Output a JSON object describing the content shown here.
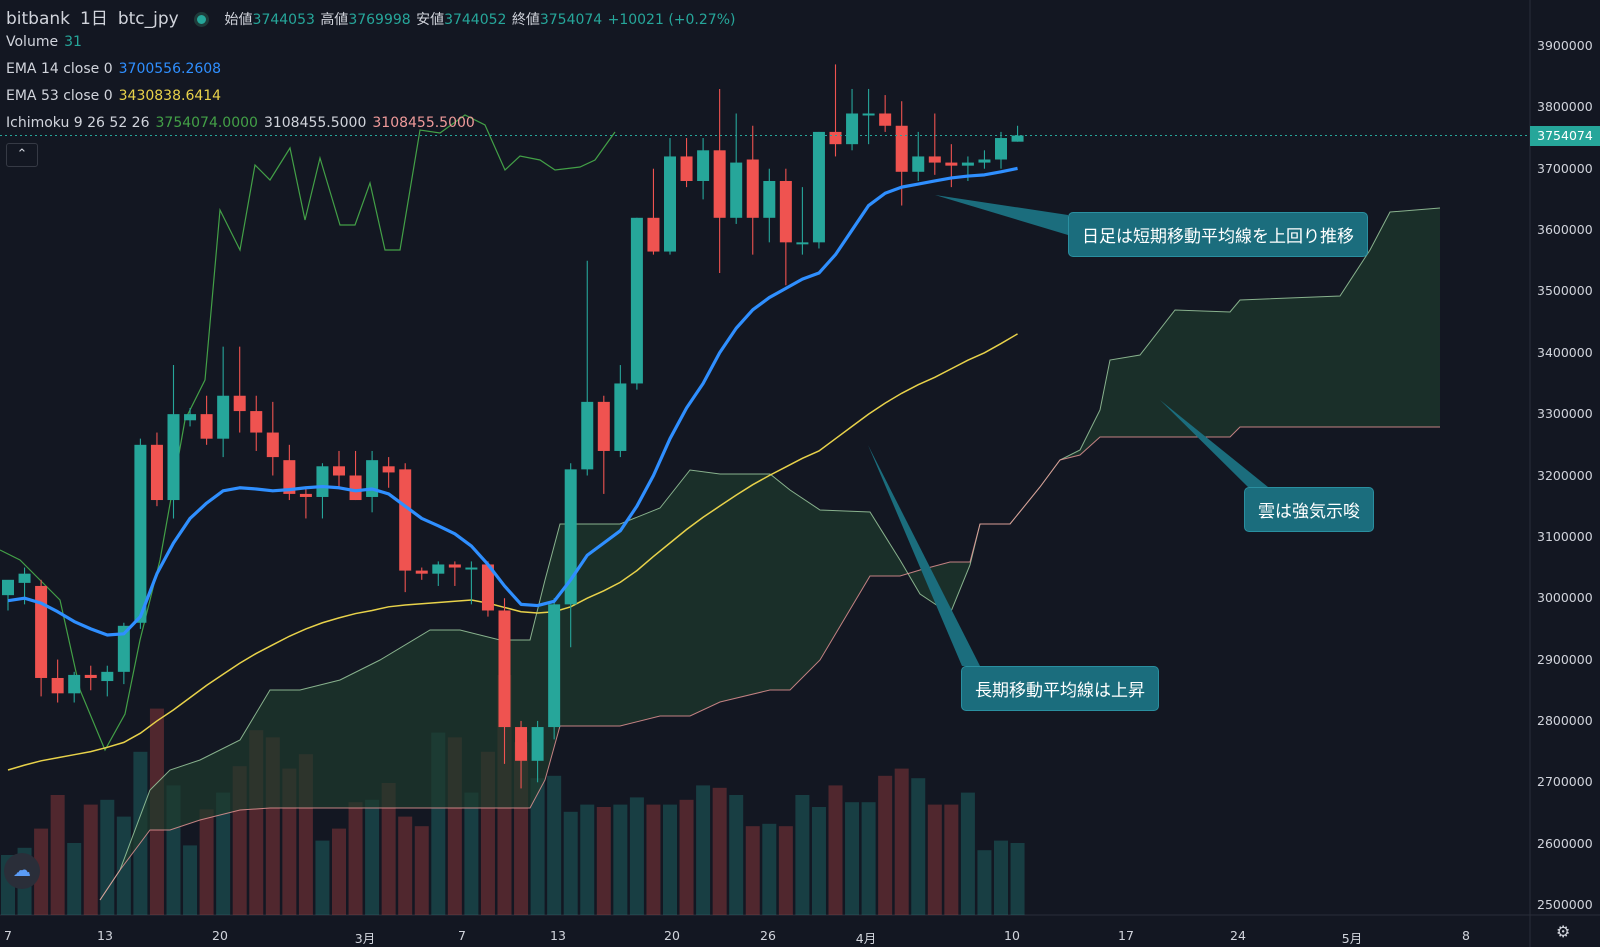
{
  "header": {
    "exchange": "bitbank",
    "interval": "1日",
    "symbol": "btc_jpy",
    "open_label": "始値",
    "open": "3744053",
    "high_label": "高値",
    "high": "3769998",
    "low_label": "安値",
    "low": "3744052",
    "close_label": "終値",
    "close": "3754074",
    "change": "+10021 (+0.27%)"
  },
  "indicators": {
    "volume_label": "Volume",
    "volume_value": "31",
    "ema14_label": "EMA 14 close 0",
    "ema14_value": "3700556.2608",
    "ema53_label": "EMA 53 close 0",
    "ema53_value": "3430838.6414",
    "ichimoku_label": "Ichimoku 9 26 52 26",
    "ichimoku_v1": "3754074.0000",
    "ichimoku_v2": "3108455.5000",
    "ichimoku_v3": "3108455.5000"
  },
  "collapse_icon": "chevron-up-icon",
  "annotations": {
    "short_ma": "日足は短期移動平均線を上回り推移",
    "cloud": "雲は強気示唆",
    "long_ma": "長期移動平均線は上昇"
  },
  "current_price_label": "3754074",
  "colors": {
    "up": "#26a69a",
    "down": "#ef5350",
    "ema14": "#2f8fff",
    "ema53": "#e8d24a",
    "lagging": "#43a047",
    "span_a": "#a5d6a7",
    "span_b": "#ef9a9a",
    "tag": "#1b6d7d",
    "background": "#131722"
  },
  "chart_data": {
    "type": "candlestick",
    "y_axis": {
      "range": [
        2500000,
        3900000
      ],
      "ticks": [
        "3900000",
        "3800000",
        "3700000",
        "3600000",
        "3500000",
        "3400000",
        "3300000",
        "3200000",
        "3100000",
        "3000000",
        "2900000",
        "2800000",
        "2700000",
        "2600000",
        "2500000"
      ]
    },
    "x_axis_labels": [
      "7",
      "13",
      "20",
      "3月",
      "7",
      "13",
      "20",
      "26",
      "4月",
      "10",
      "17",
      "24",
      "5月",
      "8"
    ],
    "candles": [
      {
        "o": 3005000,
        "h": 3020000,
        "l": 2980000,
        "c": 3030000
      },
      {
        "o": 3025000,
        "h": 3050000,
        "l": 2990000,
        "c": 3040000
      },
      {
        "o": 3020000,
        "h": 3030000,
        "l": 2840000,
        "c": 2870000
      },
      {
        "o": 2870000,
        "h": 2900000,
        "l": 2830000,
        "c": 2845000
      },
      {
        "o": 2845000,
        "h": 2880000,
        "l": 2830000,
        "c": 2875000
      },
      {
        "o": 2875000,
        "h": 2890000,
        "l": 2850000,
        "c": 2870000
      },
      {
        "o": 2865000,
        "h": 2890000,
        "l": 2840000,
        "c": 2880000
      },
      {
        "o": 2880000,
        "h": 2960000,
        "l": 2860000,
        "c": 2955000
      },
      {
        "o": 2960000,
        "h": 3260000,
        "l": 2950000,
        "c": 3250000
      },
      {
        "o": 3250000,
        "h": 3270000,
        "l": 3150000,
        "c": 3160000
      },
      {
        "o": 3160000,
        "h": 3380000,
        "l": 3130000,
        "c": 3300000
      },
      {
        "o": 3290000,
        "h": 3310000,
        "l": 3280000,
        "c": 3300000
      },
      {
        "o": 3300000,
        "h": 3330000,
        "l": 3250000,
        "c": 3260000
      },
      {
        "o": 3260000,
        "h": 3410000,
        "l": 3230000,
        "c": 3330000
      },
      {
        "o": 3330000,
        "h": 3410000,
        "l": 3270000,
        "c": 3305000
      },
      {
        "o": 3305000,
        "h": 3330000,
        "l": 3240000,
        "c": 3270000
      },
      {
        "o": 3270000,
        "h": 3320000,
        "l": 3200000,
        "c": 3230000
      },
      {
        "o": 3225000,
        "h": 3250000,
        "l": 3160000,
        "c": 3170000
      },
      {
        "o": 3170000,
        "h": 3180000,
        "l": 3130000,
        "c": 3165000
      },
      {
        "o": 3165000,
        "h": 3220000,
        "l": 3130000,
        "c": 3215000
      },
      {
        "o": 3215000,
        "h": 3240000,
        "l": 3180000,
        "c": 3200000
      },
      {
        "o": 3200000,
        "h": 3240000,
        "l": 3160000,
        "c": 3160000
      },
      {
        "o": 3165000,
        "h": 3240000,
        "l": 3140000,
        "c": 3225000
      },
      {
        "o": 3215000,
        "h": 3230000,
        "l": 3180000,
        "c": 3205000
      },
      {
        "o": 3210000,
        "h": 3220000,
        "l": 3010000,
        "c": 3045000
      },
      {
        "o": 3045000,
        "h": 3050000,
        "l": 3030000,
        "c": 3040000
      },
      {
        "o": 3040000,
        "h": 3060000,
        "l": 3020000,
        "c": 3055000
      },
      {
        "o": 3055000,
        "h": 3060000,
        "l": 3020000,
        "c": 3050000
      },
      {
        "o": 3050000,
        "h": 3060000,
        "l": 2990000,
        "c": 3050000
      },
      {
        "o": 3055000,
        "h": 3060000,
        "l": 2970000,
        "c": 2980000
      },
      {
        "o": 2980000,
        "h": 3000000,
        "l": 2730000,
        "c": 2790000
      },
      {
        "o": 2790000,
        "h": 2800000,
        "l": 2690000,
        "c": 2735000
      },
      {
        "o": 2735000,
        "h": 2800000,
        "l": 2700000,
        "c": 2790000
      },
      {
        "o": 2790000,
        "h": 3000000,
        "l": 2770000,
        "c": 2990000
      },
      {
        "o": 2990000,
        "h": 3220000,
        "l": 2920000,
        "c": 3210000
      },
      {
        "o": 3210000,
        "h": 3550000,
        "l": 3200000,
        "c": 3320000
      },
      {
        "o": 3320000,
        "h": 3330000,
        "l": 3170000,
        "c": 3240000
      },
      {
        "o": 3240000,
        "h": 3380000,
        "l": 3230000,
        "c": 3350000
      },
      {
        "o": 3350000,
        "h": 3620000,
        "l": 3340000,
        "c": 3620000
      },
      {
        "o": 3620000,
        "h": 3700000,
        "l": 3560000,
        "c": 3565000
      },
      {
        "o": 3565000,
        "h": 3750000,
        "l": 3560000,
        "c": 3720000
      },
      {
        "o": 3720000,
        "h": 3750000,
        "l": 3670000,
        "c": 3680000
      },
      {
        "o": 3680000,
        "h": 3750000,
        "l": 3650000,
        "c": 3730000
      },
      {
        "o": 3730000,
        "h": 3830000,
        "l": 3530000,
        "c": 3620000
      },
      {
        "o": 3620000,
        "h": 3790000,
        "l": 3610000,
        "c": 3710000
      },
      {
        "o": 3715000,
        "h": 3770000,
        "l": 3560000,
        "c": 3620000
      },
      {
        "o": 3620000,
        "h": 3700000,
        "l": 3580000,
        "c": 3680000
      },
      {
        "o": 3680000,
        "h": 3700000,
        "l": 3510000,
        "c": 3580000
      },
      {
        "o": 3580000,
        "h": 3670000,
        "l": 3560000,
        "c": 3580000
      },
      {
        "o": 3580000,
        "h": 3760000,
        "l": 3570000,
        "c": 3760000
      },
      {
        "o": 3760000,
        "h": 3870000,
        "l": 3720000,
        "c": 3740000
      },
      {
        "o": 3740000,
        "h": 3830000,
        "l": 3730000,
        "c": 3790000
      },
      {
        "o": 3790000,
        "h": 3830000,
        "l": 3740000,
        "c": 3790000
      },
      {
        "o": 3790000,
        "h": 3820000,
        "l": 3760000,
        "c": 3770000
      },
      {
        "o": 3770000,
        "h": 3810000,
        "l": 3640000,
        "c": 3695000
      },
      {
        "o": 3695000,
        "h": 3760000,
        "l": 3680000,
        "c": 3720000
      },
      {
        "o": 3720000,
        "h": 3790000,
        "l": 3690000,
        "c": 3710000
      },
      {
        "o": 3710000,
        "h": 3740000,
        "l": 3670000,
        "c": 3705000
      },
      {
        "o": 3705000,
        "h": 3720000,
        "l": 3680000,
        "c": 3710000
      },
      {
        "o": 3710000,
        "h": 3730000,
        "l": 3700000,
        "c": 3715000
      },
      {
        "o": 3715000,
        "h": 3760000,
        "l": 3700000,
        "c": 3750000
      },
      {
        "o": 3744053,
        "h": 3769998,
        "l": 3744052,
        "c": 3754074
      }
    ],
    "volume": [
      0.25,
      0.28,
      0.36,
      0.5,
      0.3,
      0.46,
      0.48,
      0.41,
      0.68,
      0.86,
      0.54,
      0.29,
      0.44,
      0.51,
      0.62,
      0.77,
      0.74,
      0.61,
      0.67,
      0.31,
      0.36,
      0.47,
      0.48,
      0.55,
      0.41,
      0.37,
      0.76,
      0.74,
      0.51,
      0.68,
      1.0,
      0.72,
      0.57,
      0.58,
      0.43,
      0.46,
      0.45,
      0.46,
      0.49,
      0.46,
      0.46,
      0.48,
      0.54,
      0.53,
      0.5,
      0.37,
      0.38,
      0.37,
      0.5,
      0.45,
      0.54,
      0.47,
      0.47,
      0.58,
      0.61,
      0.57,
      0.46,
      0.46,
      0.51,
      0.27,
      0.31,
      0.3
    ],
    "ema14": [
      2996000,
      3000000,
      2992000,
      2978000,
      2962000,
      2950000,
      2940000,
      2942000,
      2970000,
      3040000,
      3090000,
      3130000,
      3155000,
      3175000,
      3180000,
      3178000,
      3175000,
      3177000,
      3180000,
      3182000,
      3180000,
      3175000,
      3178000,
      3170000,
      3150000,
      3130000,
      3118000,
      3105000,
      3085000,
      3055000,
      3020000,
      2990000,
      2988000,
      2995000,
      3030000,
      3070000,
      3090000,
      3110000,
      3150000,
      3200000,
      3260000,
      3310000,
      3350000,
      3400000,
      3440000,
      3470000,
      3490000,
      3505000,
      3520000,
      3530000,
      3560000,
      3600000,
      3640000,
      3660000,
      3670000,
      3675000,
      3680000,
      3685000,
      3688000,
      3690000,
      3695000,
      3700556
    ],
    "ema53": [
      2720000,
      2728000,
      2735000,
      2740000,
      2745000,
      2750000,
      2757000,
      2765000,
      2780000,
      2800000,
      2818000,
      2838000,
      2858000,
      2876000,
      2894000,
      2910000,
      2924000,
      2938000,
      2950000,
      2960000,
      2968000,
      2975000,
      2980000,
      2986000,
      2989000,
      2991000,
      2993000,
      2995000,
      2997000,
      2992000,
      2985000,
      2978000,
      2976000,
      2978000,
      2986000,
      3000000,
      3012000,
      3026000,
      3045000,
      3068000,
      3090000,
      3112000,
      3132000,
      3150000,
      3168000,
      3185000,
      3200000,
      3214000,
      3228000,
      3240000,
      3260000,
      3280000,
      3300000,
      3318000,
      3334000,
      3348000,
      3360000,
      3374000,
      3388000,
      3400000,
      3415000,
      3430838
    ]
  }
}
